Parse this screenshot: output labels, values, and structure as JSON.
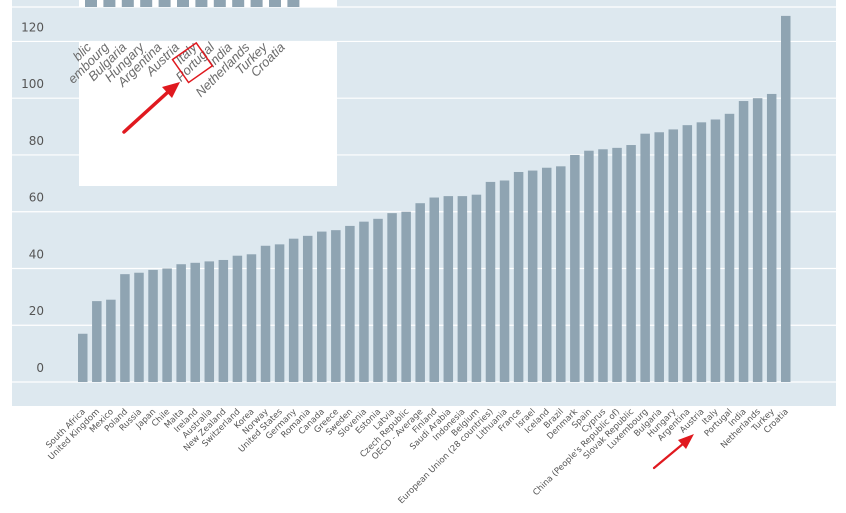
{
  "chart_data": {
    "type": "bar",
    "title": "",
    "xlabel": "",
    "ylabel": "",
    "ylim": [
      0,
      130
    ],
    "yticks": [
      0,
      20,
      40,
      60,
      80,
      100,
      120
    ],
    "grid": true,
    "categories": [
      "South Africa",
      "United Kingdom",
      "Mexico",
      "Poland",
      "Russia",
      "Japan",
      "Chile",
      "Malta",
      "Ireland",
      "Australia",
      "New Zealand",
      "Switzerland",
      "Korea",
      "Norway",
      "United States",
      "Germany",
      "Romania",
      "Canada",
      "Greece",
      "Sweden",
      "Slovenia",
      "Estonia",
      "Latvia",
      "Czech Republic",
      "OECD - Average",
      "Finland",
      "Saudi Arabia",
      "Indonesia",
      "Belgium",
      "European Union (28 countries)",
      "Lithuania",
      "France",
      "Israel",
      "Iceland",
      "Brazil",
      "Denmark",
      "Spain",
      "Cyprus",
      "China (People's Republic of)",
      "Slovak Republic",
      "Luxembourg",
      "Bulgaria",
      "Hungary",
      "Argentina",
      "Austria",
      "Italy",
      "Portugal",
      "India",
      "Netherlands",
      "Turkey",
      "Croatia"
    ],
    "values": [
      17,
      28.5,
      29,
      38,
      38.5,
      39.5,
      40,
      41.5,
      42,
      42.5,
      43,
      44.5,
      45,
      48,
      48.5,
      50.5,
      51.5,
      53,
      53.5,
      55,
      56.5,
      57.5,
      59.5,
      60,
      63,
      65,
      65.5,
      65.5,
      66,
      70.5,
      71,
      74,
      74.5,
      75.5,
      76,
      80,
      81.5,
      82,
      82.5,
      83.5,
      87.5,
      88,
      89,
      90.5,
      91.5,
      92.5,
      94.5,
      99,
      100,
      101.5,
      129
    ],
    "bar_color": "#8fa4b2",
    "plot_background": "#dde8ef",
    "annotation_color": "#e0191f",
    "highlighted_category": "Italy",
    "inset_zoom": {
      "categories": [
        "Slovak Republic",
        "Luxembourg",
        "Bulgaria",
        "Hungary",
        "Argentina",
        "Austria",
        "Italy",
        "Portugal",
        "India",
        "Netherlands",
        "Turkey",
        "Croatia"
      ],
      "labels": [
        "blic",
        "embourg",
        "Bulgaria",
        "Hungary",
        "Argentina",
        "Austria",
        "Italy",
        "Portugal",
        "India",
        "Netherlands",
        "Turkey",
        "Croatia"
      ]
    }
  }
}
